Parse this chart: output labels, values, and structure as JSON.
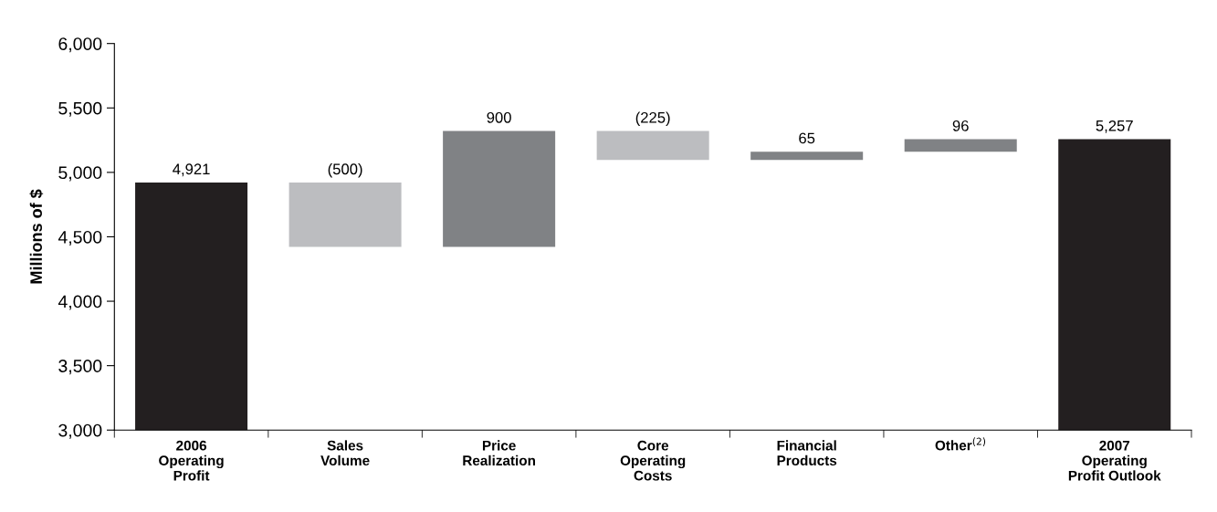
{
  "chart_data": {
    "type": "bar",
    "ylabel": "Millions of $",
    "categories": [
      "2006\nOperating\nProfit",
      "Sales\nVolume",
      "Price\nRealization",
      "Core\nOperating\nCosts",
      "Financial\nProducts",
      "Other$^{(2)}$",
      "2007\nOperating\nProfit Outlook"
    ],
    "values": [
      4921,
      -500,
      900,
      -225,
      65,
      96,
      5257
    ],
    "base": [
      null,
      4921,
      4421,
      5321,
      5096,
      5161,
      null
    ],
    "colors": [
      "#231f20",
      "#bcbdc0",
      "#808285",
      "#bcbdc0",
      "#808285",
      "#808285",
      "#231f20"
    ],
    "value_labels": [
      "4,921",
      "(500)",
      "900",
      "(225)",
      "65",
      "96",
      "5,257"
    ],
    "ylim": [
      3000,
      6000
    ],
    "yticks": [
      {
        "value": 3000,
        "label": "3,000"
      },
      {
        "value": 3500,
        "label": "3,500"
      },
      {
        "value": 4000,
        "label": "4,000"
      },
      {
        "value": 4500,
        "label": "4,500"
      },
      {
        "value": 5000,
        "label": "5,000"
      },
      {
        "value": 5500,
        "label": "5,500"
      },
      {
        "value": 6000,
        "label": "6,000"
      }
    ],
    "grid": false,
    "legend": false
  }
}
